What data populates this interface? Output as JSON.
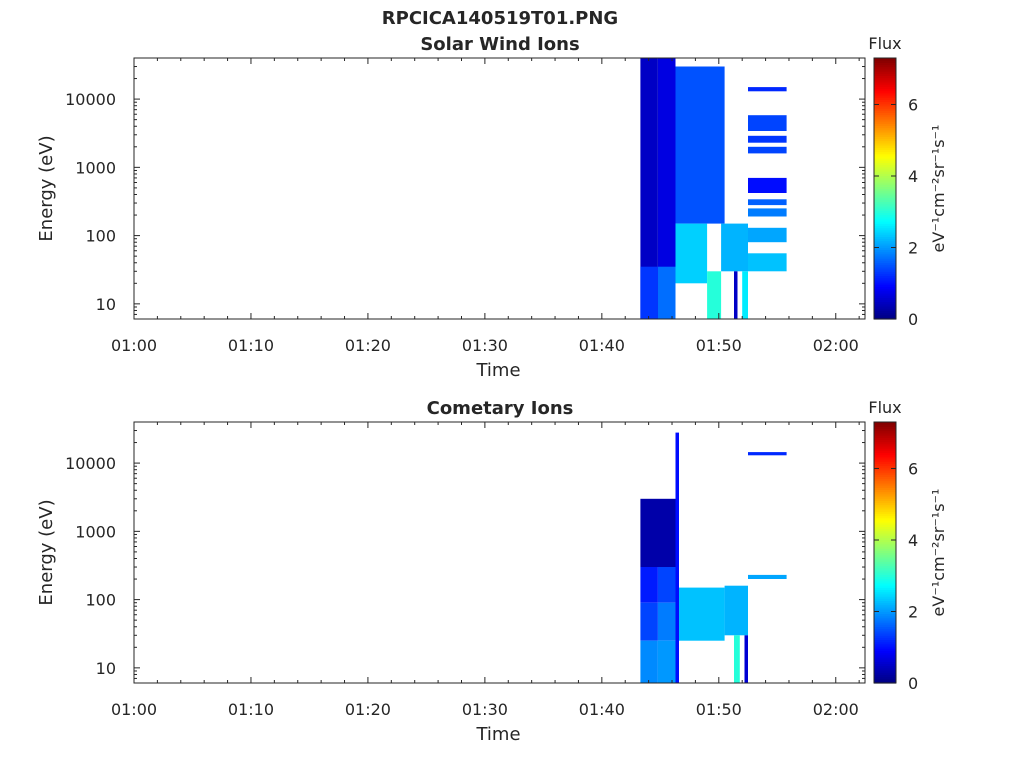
{
  "figure_title": "RPCICA140519T01.PNG",
  "chart_data": [
    {
      "type": "heatmap",
      "title": "Solar Wind Ions",
      "xlabel": "Time",
      "ylabel": "Energy (eV)",
      "y_scale": "log",
      "ylim": [
        6,
        40000
      ],
      "xlim": [
        "01:00",
        "02:02.5"
      ],
      "x_ticks": [
        "01:00",
        "01:10",
        "01:20",
        "01:30",
        "01:40",
        "01:50",
        "02:00"
      ],
      "y_ticks": [
        "10",
        "100",
        "1000",
        "10000"
      ],
      "colorbar": {
        "label": "Flux",
        "unit_label": "eV⁻¹cm⁻²sr⁻¹s⁻¹",
        "range": [
          0,
          7.3
        ],
        "ticks": [
          "0",
          "2",
          "4",
          "6"
        ],
        "colormap": "jet"
      },
      "cells": [
        {
          "t0": "01:43.3",
          "t1": "01:44.8",
          "e_min": 6,
          "e_max": 40000,
          "value": 0.5
        },
        {
          "t0": "01:44.8",
          "t1": "01:46.3",
          "e_min": 6,
          "e_max": 40000,
          "value": 0.7
        },
        {
          "t0": "01:43.3",
          "t1": "01:44.8",
          "e_min": 6,
          "e_max": 35,
          "value": 1.3
        },
        {
          "t0": "01:44.8",
          "t1": "01:46.3",
          "e_min": 6,
          "e_max": 35,
          "value": 1.7
        },
        {
          "t0": "01:46.3",
          "t1": "01:50.5",
          "e_min": 150,
          "e_max": 30000,
          "value": 1.5
        },
        {
          "t0": "01:46.3",
          "t1": "01:49.0",
          "e_min": 20,
          "e_max": 150,
          "value": 2.4
        },
        {
          "t0": "01:49.0",
          "t1": "01:50.2",
          "e_min": 6,
          "e_max": 30,
          "value": 3.0
        },
        {
          "t0": "01:50.2",
          "t1": "01:52.5",
          "e_min": 30,
          "e_max": 150,
          "value": 2.2
        },
        {
          "t0": "01:51.3",
          "t1": "01:51.6",
          "e_min": 6,
          "e_max": 30,
          "value": 0.5
        },
        {
          "t0": "01:52.0",
          "t1": "01:52.5",
          "e_min": 6,
          "e_max": 30,
          "value": 2.6
        },
        {
          "t0": "01:52.5",
          "t1": "01:55.8",
          "e_min": 30,
          "e_max": 55,
          "value": 2.3
        },
        {
          "t0": "01:52.5",
          "t1": "01:55.8",
          "e_min": 80,
          "e_max": 130,
          "value": 2.1
        },
        {
          "t0": "01:52.5",
          "t1": "01:55.8",
          "e_min": 190,
          "e_max": 250,
          "value": 1.8
        },
        {
          "t0": "01:52.5",
          "t1": "01:55.8",
          "e_min": 280,
          "e_max": 340,
          "value": 1.6
        },
        {
          "t0": "01:52.5",
          "t1": "01:55.8",
          "e_min": 420,
          "e_max": 700,
          "value": 1.0
        },
        {
          "t0": "01:52.5",
          "t1": "01:55.8",
          "e_min": 1600,
          "e_max": 2000,
          "value": 1.4
        },
        {
          "t0": "01:52.5",
          "t1": "01:55.8",
          "e_min": 2300,
          "e_max": 2900,
          "value": 1.3
        },
        {
          "t0": "01:52.5",
          "t1": "01:55.8",
          "e_min": 3400,
          "e_max": 5800,
          "value": 1.4
        },
        {
          "t0": "01:52.5",
          "t1": "01:55.8",
          "e_min": 13000,
          "e_max": 15000,
          "value": 1.2
        }
      ]
    },
    {
      "type": "heatmap",
      "title": "Cometary Ions",
      "xlabel": "Time",
      "ylabel": "Energy (eV)",
      "y_scale": "log",
      "ylim": [
        6,
        40000
      ],
      "xlim": [
        "01:00",
        "02:02.5"
      ],
      "x_ticks": [
        "01:00",
        "01:10",
        "01:20",
        "01:30",
        "01:40",
        "01:50",
        "02:00"
      ],
      "y_ticks": [
        "10",
        "100",
        "1000",
        "10000"
      ],
      "colorbar": {
        "label": "Flux",
        "unit_label": "eV⁻¹cm⁻²sr⁻¹s⁻¹",
        "range": [
          0,
          7.3
        ],
        "ticks": [
          "0",
          "2",
          "4",
          "6"
        ],
        "colormap": "jet"
      },
      "cells": [
        {
          "t0": "01:43.3",
          "t1": "01:46.3",
          "e_min": 300,
          "e_max": 3000,
          "value": 0.3
        },
        {
          "t0": "01:43.3",
          "t1": "01:44.8",
          "e_min": 90,
          "e_max": 300,
          "value": 1.1
        },
        {
          "t0": "01:44.8",
          "t1": "01:46.3",
          "e_min": 90,
          "e_max": 300,
          "value": 1.4
        },
        {
          "t0": "01:43.3",
          "t1": "01:44.8",
          "e_min": 25,
          "e_max": 90,
          "value": 1.4
        },
        {
          "t0": "01:44.8",
          "t1": "01:46.3",
          "e_min": 25,
          "e_max": 90,
          "value": 1.8
        },
        {
          "t0": "01:43.3",
          "t1": "01:44.8",
          "e_min": 6,
          "e_max": 25,
          "value": 1.9
        },
        {
          "t0": "01:44.8",
          "t1": "01:46.3",
          "e_min": 6,
          "e_max": 25,
          "value": 2.0
        },
        {
          "t0": "01:46.3",
          "t1": "01:46.6",
          "e_min": 6,
          "e_max": 28000,
          "value": 1.0
        },
        {
          "t0": "01:46.6",
          "t1": "01:50.5",
          "e_min": 25,
          "e_max": 150,
          "value": 2.3
        },
        {
          "t0": "01:50.5",
          "t1": "01:52.5",
          "e_min": 30,
          "e_max": 160,
          "value": 2.2
        },
        {
          "t0": "01:51.3",
          "t1": "01:51.8",
          "e_min": 6,
          "e_max": 30,
          "value": 3.0
        },
        {
          "t0": "01:52.2",
          "t1": "01:52.5",
          "e_min": 6,
          "e_max": 30,
          "value": 0.6
        },
        {
          "t0": "01:52.5",
          "t1": "01:55.8",
          "e_min": 200,
          "e_max": 230,
          "value": 2.1
        },
        {
          "t0": "01:52.5",
          "t1": "01:55.8",
          "e_min": 13000,
          "e_max": 14500,
          "value": 1.2
        }
      ]
    }
  ]
}
